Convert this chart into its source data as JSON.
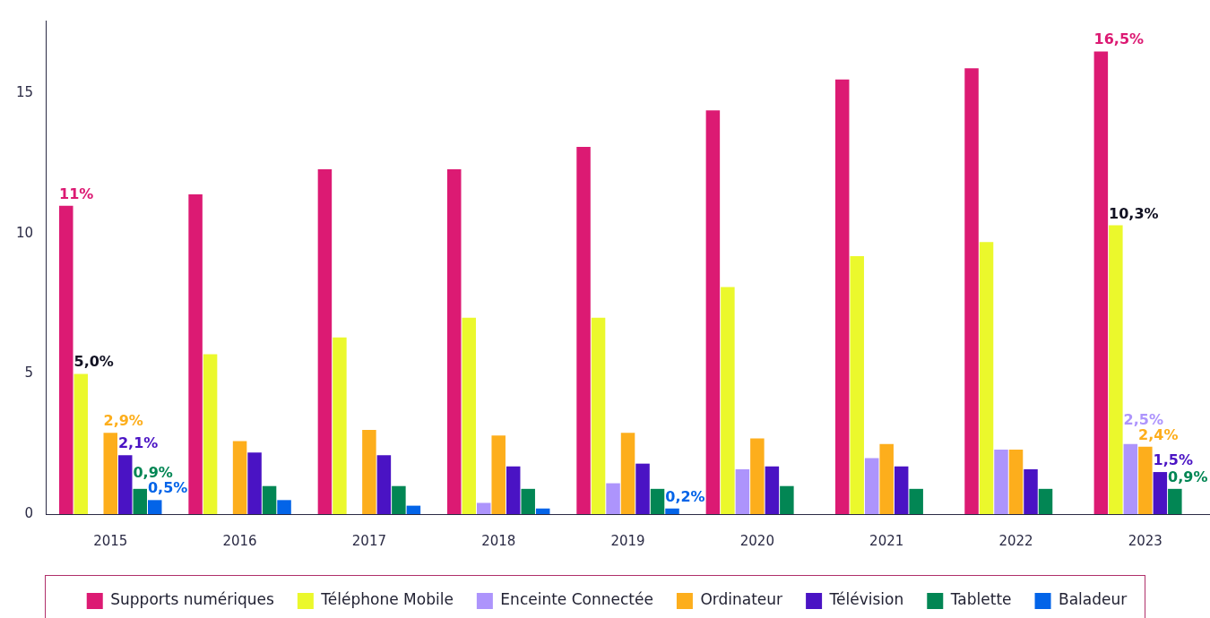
{
  "chart_data": {
    "type": "bar",
    "categories": [
      "2015",
      "2016",
      "2017",
      "2018",
      "2019",
      "2020",
      "2021",
      "2022",
      "2023"
    ],
    "series": [
      {
        "name": "Supports numériques",
        "color": "#dc1a73",
        "values": [
          11,
          11.4,
          12.3,
          12.3,
          13.1,
          14.4,
          15.5,
          15.9,
          16.5
        ],
        "value_labels": [
          "11%",
          null,
          null,
          null,
          null,
          null,
          null,
          null,
          "16,5%"
        ]
      },
      {
        "name": "Téléphone Mobile",
        "color": "#ebf82c",
        "values": [
          5.0,
          5.7,
          6.3,
          7.0,
          7.0,
          8.1,
          9.2,
          9.7,
          10.3
        ],
        "value_labels": [
          "5,0%",
          null,
          null,
          null,
          null,
          null,
          null,
          null,
          "10,3%"
        ]
      },
      {
        "name": "Enceinte Connectée",
        "color": "#ad94fc",
        "values": [
          null,
          null,
          null,
          0.4,
          1.1,
          1.6,
          2.0,
          2.3,
          2.5
        ],
        "value_labels": [
          null,
          null,
          null,
          null,
          null,
          null,
          null,
          null,
          "2,5%"
        ]
      },
      {
        "name": "Ordinateur",
        "color": "#fdae1c",
        "values": [
          2.9,
          2.6,
          3.0,
          2.8,
          2.9,
          2.7,
          2.5,
          2.3,
          2.4
        ],
        "value_labels": [
          "2,9%",
          null,
          null,
          null,
          null,
          null,
          null,
          null,
          "2,4%"
        ]
      },
      {
        "name": "Télévision",
        "color": "#4a13c4",
        "values": [
          2.1,
          2.2,
          2.1,
          1.7,
          1.8,
          1.7,
          1.7,
          1.6,
          1.5
        ],
        "value_labels": [
          "2,1%",
          null,
          null,
          null,
          null,
          null,
          null,
          null,
          "1,5%"
        ]
      },
      {
        "name": "Tablette",
        "color": "#028654",
        "values": [
          0.9,
          1.0,
          1.0,
          0.9,
          0.9,
          1.0,
          0.9,
          0.9,
          0.9
        ],
        "value_labels": [
          "0,9%",
          null,
          null,
          null,
          null,
          null,
          null,
          null,
          "0,9%"
        ]
      },
      {
        "name": "Baladeur",
        "color": "#0364e8",
        "values": [
          0.5,
          0.5,
          0.3,
          0.2,
          0.2,
          null,
          null,
          null,
          null
        ],
        "value_labels": [
          "0,5%",
          null,
          null,
          null,
          "0,2%",
          null,
          null,
          null,
          null
        ]
      }
    ],
    "ylim": [
      0,
      17.6
    ],
    "yticks": [
      0,
      5,
      10,
      15
    ],
    "grid": false,
    "legend": "bottom"
  }
}
